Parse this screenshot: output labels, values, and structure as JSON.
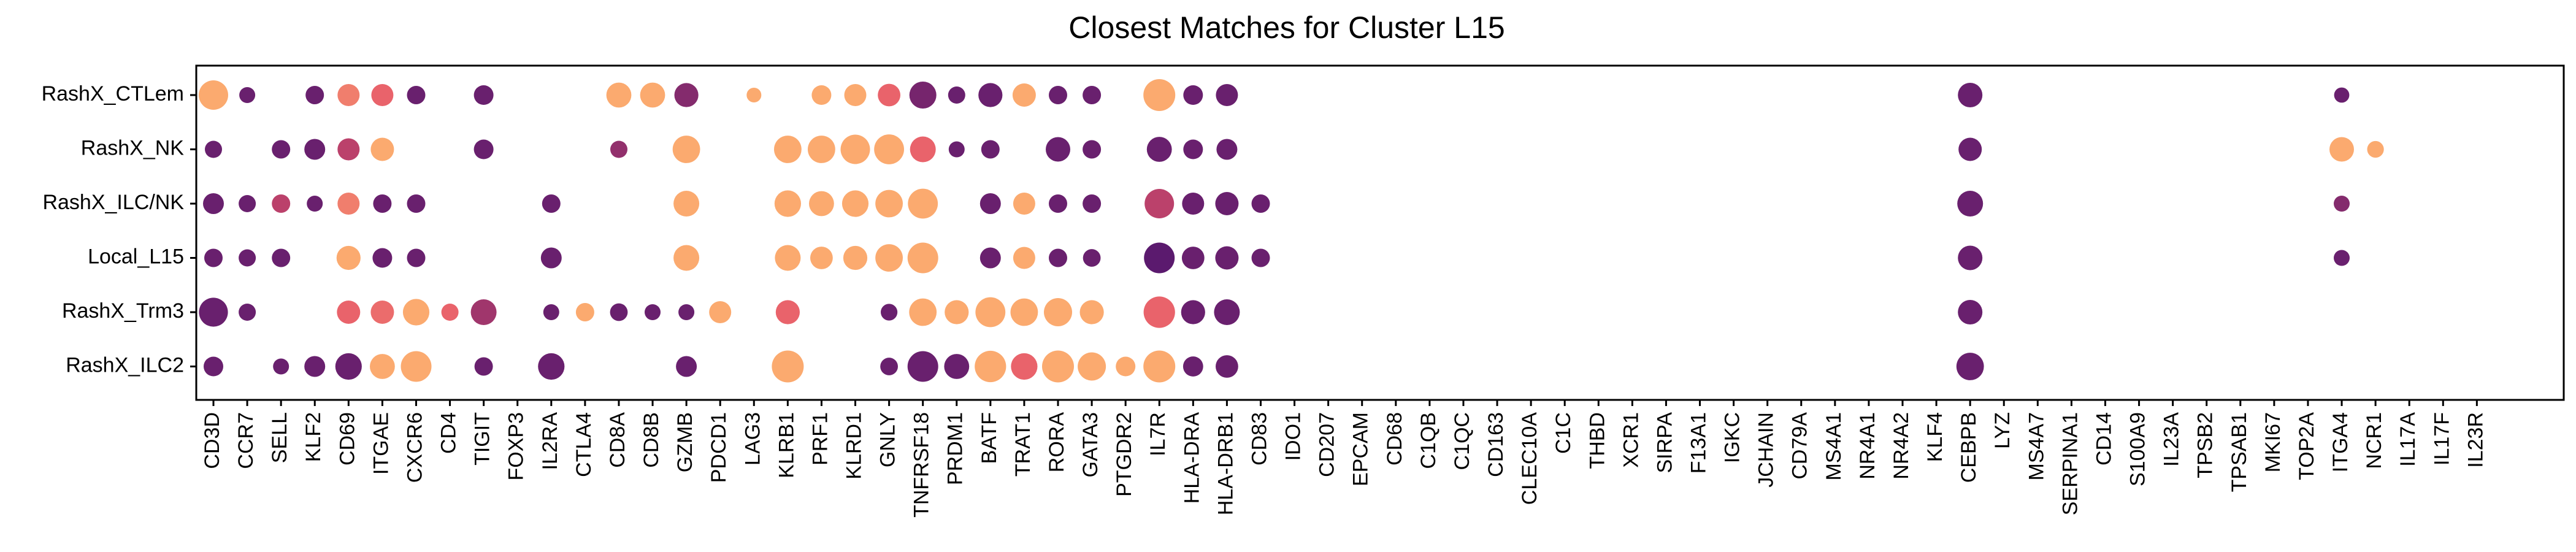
{
  "chart_data": {
    "type": "scatter",
    "title": "Closest Matches for Cluster L15",
    "xlabel": "",
    "ylabel": "",
    "grid": false,
    "legend": "none",
    "y_categories": [
      "RashX_CTLem",
      "RashX_NK",
      "RashX_ILC/NK",
      "Local_L15",
      "RashX_Trm3",
      "RashX_ILC2"
    ],
    "x_categories": [
      "CD3D",
      "CCR7",
      "SELL",
      "KLF2",
      "CD69",
      "ITGAE",
      "CXCR6",
      "CD4",
      "TIGIT",
      "FOXP3",
      "IL2RA",
      "CTLA4",
      "CD8A",
      "CD8B",
      "GZMB",
      "PDCD1",
      "LAG3",
      "KLRB1",
      "PRF1",
      "KLRD1",
      "GNLY",
      "TNFRSF18",
      "PRDM1",
      "BATF",
      "TRAT1",
      "RORA",
      "GATA3",
      "PTGDR2",
      "IL7R",
      "HLA-DRA",
      "HLA-DRB1",
      "CD83",
      "IDO1",
      "CD207",
      "EPCAM",
      "CD68",
      "C1QB",
      "C1QC",
      "CD163",
      "CLEC10A",
      "C1C",
      "THBD",
      "XCR1",
      "SIRPA",
      "F13A1",
      "IGKC",
      "JCHAIN",
      "CD79A",
      "MS4A1",
      "NR4A1",
      "NR4A2",
      "KLF4",
      "CEBPB",
      "LYZ",
      "MS4A7",
      "SERPINA1",
      "CD14",
      "S100A9",
      "IL23A",
      "TPSB2",
      "TPSAB1",
      "MKI67",
      "TOP2A",
      "ITGA4",
      "NCR1",
      "IL17A",
      "IL17F",
      "IL23R"
    ],
    "size_meaning": "relative dot size 0-1",
    "color_meaning": "expression level 0 (dark purple) to 1 (light orange)",
    "colors": {
      "low": "#5b1a6e",
      "mid": "#e4516a",
      "high": "#fbaa6f"
    },
    "series": [
      {
        "row": "RashX_CTLem",
        "points": [
          {
            "gene": "CD3D",
            "size": 0.9,
            "color": 1.0
          },
          {
            "gene": "CCR7",
            "size": 0.35,
            "color": 0.05
          },
          {
            "gene": "KLF2",
            "size": 0.45,
            "color": 0.05
          },
          {
            "gene": "CD69",
            "size": 0.6,
            "color": 0.75
          },
          {
            "gene": "ITGAE",
            "size": 0.6,
            "color": 0.6
          },
          {
            "gene": "CXCR6",
            "size": 0.45,
            "color": 0.05
          },
          {
            "gene": "TIGIT",
            "size": 0.5,
            "color": 0.05
          },
          {
            "gene": "CD8A",
            "size": 0.72,
            "color": 1.0
          },
          {
            "gene": "CD8B",
            "size": 0.72,
            "color": 1.0
          },
          {
            "gene": "GZMB",
            "size": 0.68,
            "color": 0.15
          },
          {
            "gene": "LAG3",
            "size": 0.3,
            "color": 1.0
          },
          {
            "gene": "PRF1",
            "size": 0.5,
            "color": 1.0
          },
          {
            "gene": "KLRD1",
            "size": 0.6,
            "color": 1.0
          },
          {
            "gene": "GNLY",
            "size": 0.62,
            "color": 0.6
          },
          {
            "gene": "TNFRSF18",
            "size": 0.8,
            "color": 0.1
          },
          {
            "gene": "PRDM1",
            "size": 0.4,
            "color": 0.05
          },
          {
            "gene": "BATF",
            "size": 0.68,
            "color": 0.05
          },
          {
            "gene": "TRAT1",
            "size": 0.65,
            "color": 1.0
          },
          {
            "gene": "RORA",
            "size": 0.45,
            "color": 0.05
          },
          {
            "gene": "GATA3",
            "size": 0.45,
            "color": 0.05
          },
          {
            "gene": "IL7R",
            "size": 1.0,
            "color": 1.0
          },
          {
            "gene": "HLA-DRA",
            "size": 0.5,
            "color": 0.05
          },
          {
            "gene": "HLA-DRB1",
            "size": 0.6,
            "color": 0.05
          },
          {
            "gene": "CEBPB",
            "size": 0.7,
            "color": 0.05
          },
          {
            "gene": "ITGA4",
            "size": 0.32,
            "color": 0.05
          }
        ]
      },
      {
        "row": "RashX_NK",
        "points": [
          {
            "gene": "CD3D",
            "size": 0.4,
            "color": 0.05
          },
          {
            "gene": "SELL",
            "size": 0.45,
            "color": 0.05
          },
          {
            "gene": "KLF2",
            "size": 0.55,
            "color": 0.05
          },
          {
            "gene": "CD69",
            "size": 0.6,
            "color": 0.35
          },
          {
            "gene": "ITGAE",
            "size": 0.65,
            "color": 1.0
          },
          {
            "gene": "TIGIT",
            "size": 0.5,
            "color": 0.05
          },
          {
            "gene": "CD8A",
            "size": 0.4,
            "color": 0.2
          },
          {
            "gene": "GZMB",
            "size": 0.82,
            "color": 1.0
          },
          {
            "gene": "KLRB1",
            "size": 0.82,
            "color": 1.0
          },
          {
            "gene": "PRF1",
            "size": 0.82,
            "color": 1.0
          },
          {
            "gene": "KLRD1",
            "size": 0.9,
            "color": 1.0
          },
          {
            "gene": "GNLY",
            "size": 0.92,
            "color": 1.0
          },
          {
            "gene": "TNFRSF18",
            "size": 0.75,
            "color": 0.6
          },
          {
            "gene": "PRDM1",
            "size": 0.35,
            "color": 0.05
          },
          {
            "gene": "BATF",
            "size": 0.45,
            "color": 0.05
          },
          {
            "gene": "RORA",
            "size": 0.7,
            "color": 0.05
          },
          {
            "gene": "GATA3",
            "size": 0.45,
            "color": 0.05
          },
          {
            "gene": "IL7R",
            "size": 0.72,
            "color": 0.05
          },
          {
            "gene": "HLA-DRA",
            "size": 0.5,
            "color": 0.05
          },
          {
            "gene": "HLA-DRB1",
            "size": 0.55,
            "color": 0.05
          },
          {
            "gene": "CEBPB",
            "size": 0.65,
            "color": 0.05
          },
          {
            "gene": "ITGA4",
            "size": 0.7,
            "color": 1.0
          },
          {
            "gene": "NCR1",
            "size": 0.38,
            "color": 1.0
          }
        ]
      },
      {
        "row": "RashX_ILC/NK",
        "points": [
          {
            "gene": "CD3D",
            "size": 0.55,
            "color": 0.05
          },
          {
            "gene": "CCR7",
            "size": 0.4,
            "color": 0.05
          },
          {
            "gene": "SELL",
            "size": 0.45,
            "color": 0.35
          },
          {
            "gene": "KLF2",
            "size": 0.35,
            "color": 0.05
          },
          {
            "gene": "CD69",
            "size": 0.6,
            "color": 0.75
          },
          {
            "gene": "ITGAE",
            "size": 0.45,
            "color": 0.05
          },
          {
            "gene": "CXCR6",
            "size": 0.45,
            "color": 0.05
          },
          {
            "gene": "IL2RA",
            "size": 0.45,
            "color": 0.05
          },
          {
            "gene": "GZMB",
            "size": 0.75,
            "color": 1.0
          },
          {
            "gene": "KLRB1",
            "size": 0.78,
            "color": 1.0
          },
          {
            "gene": "PRF1",
            "size": 0.72,
            "color": 1.0
          },
          {
            "gene": "KLRD1",
            "size": 0.78,
            "color": 1.0
          },
          {
            "gene": "GNLY",
            "size": 0.82,
            "color": 1.0
          },
          {
            "gene": "TNFRSF18",
            "size": 0.92,
            "color": 1.0
          },
          {
            "gene": "BATF",
            "size": 0.55,
            "color": 0.05
          },
          {
            "gene": "TRAT1",
            "size": 0.6,
            "color": 1.0
          },
          {
            "gene": "RORA",
            "size": 0.45,
            "color": 0.05
          },
          {
            "gene": "GATA3",
            "size": 0.45,
            "color": 0.05
          },
          {
            "gene": "IL7R",
            "size": 0.9,
            "color": 0.35
          },
          {
            "gene": "HLA-DRA",
            "size": 0.6,
            "color": 0.05
          },
          {
            "gene": "HLA-DRB1",
            "size": 0.65,
            "color": 0.05
          },
          {
            "gene": "CD83",
            "size": 0.45,
            "color": 0.05
          },
          {
            "gene": "CEBPB",
            "size": 0.75,
            "color": 0.05
          },
          {
            "gene": "ITGA4",
            "size": 0.35,
            "color": 0.15
          }
        ]
      },
      {
        "row": "Local_L15",
        "points": [
          {
            "gene": "CD3D",
            "size": 0.45,
            "color": 0.05
          },
          {
            "gene": "CCR7",
            "size": 0.4,
            "color": 0.05
          },
          {
            "gene": "SELL",
            "size": 0.45,
            "color": 0.05
          },
          {
            "gene": "CD69",
            "size": 0.68,
            "color": 1.0
          },
          {
            "gene": "ITGAE",
            "size": 0.5,
            "color": 0.05
          },
          {
            "gene": "CXCR6",
            "size": 0.45,
            "color": 0.05
          },
          {
            "gene": "IL2RA",
            "size": 0.55,
            "color": 0.05
          },
          {
            "gene": "GZMB",
            "size": 0.75,
            "color": 1.0
          },
          {
            "gene": "KLRB1",
            "size": 0.75,
            "color": 1.0
          },
          {
            "gene": "PRF1",
            "size": 0.62,
            "color": 1.0
          },
          {
            "gene": "KLRD1",
            "size": 0.68,
            "color": 1.0
          },
          {
            "gene": "GNLY",
            "size": 0.82,
            "color": 1.0
          },
          {
            "gene": "TNFRSF18",
            "size": 0.95,
            "color": 1.0
          },
          {
            "gene": "BATF",
            "size": 0.55,
            "color": 0.05
          },
          {
            "gene": "TRAT1",
            "size": 0.6,
            "color": 1.0
          },
          {
            "gene": "RORA",
            "size": 0.45,
            "color": 0.05
          },
          {
            "gene": "GATA3",
            "size": 0.42,
            "color": 0.05
          },
          {
            "gene": "IL7R",
            "size": 0.95,
            "color": 0.0
          },
          {
            "gene": "HLA-DRA",
            "size": 0.62,
            "color": 0.05
          },
          {
            "gene": "HLA-DRB1",
            "size": 0.65,
            "color": 0.05
          },
          {
            "gene": "CD83",
            "size": 0.45,
            "color": 0.05
          },
          {
            "gene": "CEBPB",
            "size": 0.7,
            "color": 0.05
          },
          {
            "gene": "ITGA4",
            "size": 0.35,
            "color": 0.05
          }
        ]
      },
      {
        "row": "RashX_Trm3",
        "points": [
          {
            "gene": "CD3D",
            "size": 0.88,
            "color": 0.05
          },
          {
            "gene": "CCR7",
            "size": 0.4,
            "color": 0.05
          },
          {
            "gene": "CD69",
            "size": 0.65,
            "color": 0.6
          },
          {
            "gene": "ITGAE",
            "size": 0.65,
            "color": 0.65
          },
          {
            "gene": "CXCR6",
            "size": 0.78,
            "color": 1.0
          },
          {
            "gene": "CD4",
            "size": 0.4,
            "color": 0.6
          },
          {
            "gene": "TIGIT",
            "size": 0.75,
            "color": 0.25
          },
          {
            "gene": "IL2RA",
            "size": 0.35,
            "color": 0.05
          },
          {
            "gene": "CTLA4",
            "size": 0.45,
            "color": 1.0
          },
          {
            "gene": "CD8A",
            "size": 0.42,
            "color": 0.05
          },
          {
            "gene": "CD8B",
            "size": 0.35,
            "color": 0.05
          },
          {
            "gene": "GZMB",
            "size": 0.35,
            "color": 0.05
          },
          {
            "gene": "PDCD1",
            "size": 0.6,
            "color": 1.0
          },
          {
            "gene": "KLRB1",
            "size": 0.68,
            "color": 0.6
          },
          {
            "gene": "GNLY",
            "size": 0.38,
            "color": 0.05
          },
          {
            "gene": "TNFRSF18",
            "size": 0.82,
            "color": 1.0
          },
          {
            "gene": "PRDM1",
            "size": 0.68,
            "color": 1.0
          },
          {
            "gene": "BATF",
            "size": 0.92,
            "color": 1.0
          },
          {
            "gene": "TRAT1",
            "size": 0.82,
            "color": 1.0
          },
          {
            "gene": "RORA",
            "size": 0.85,
            "color": 1.0
          },
          {
            "gene": "GATA3",
            "size": 0.68,
            "color": 1.0
          },
          {
            "gene": "IL7R",
            "size": 0.98,
            "color": 0.6
          },
          {
            "gene": "HLA-DRA",
            "size": 0.68,
            "color": 0.05
          },
          {
            "gene": "HLA-DRB1",
            "size": 0.75,
            "color": 0.05
          },
          {
            "gene": "CEBPB",
            "size": 0.7,
            "color": 0.05
          }
        ]
      },
      {
        "row": "RashX_ILC2",
        "points": [
          {
            "gene": "CD3D",
            "size": 0.5,
            "color": 0.05
          },
          {
            "gene": "SELL",
            "size": 0.35,
            "color": 0.05
          },
          {
            "gene": "KLF2",
            "size": 0.55,
            "color": 0.05
          },
          {
            "gene": "CD69",
            "size": 0.78,
            "color": 0.05
          },
          {
            "gene": "ITGAE",
            "size": 0.72,
            "color": 1.0
          },
          {
            "gene": "CXCR6",
            "size": 0.95,
            "color": 1.0
          },
          {
            "gene": "TIGIT",
            "size": 0.45,
            "color": 0.05
          },
          {
            "gene": "IL2RA",
            "size": 0.78,
            "color": 0.05
          },
          {
            "gene": "GZMB",
            "size": 0.55,
            "color": 0.05
          },
          {
            "gene": "KLRB1",
            "size": 1.0,
            "color": 1.0
          },
          {
            "gene": "GNLY",
            "size": 0.42,
            "color": 0.05
          },
          {
            "gene": "TNFRSF18",
            "size": 0.95,
            "color": 0.05
          },
          {
            "gene": "PRDM1",
            "size": 0.72,
            "color": 0.05
          },
          {
            "gene": "BATF",
            "size": 0.98,
            "color": 1.0
          },
          {
            "gene": "TRAT1",
            "size": 0.78,
            "color": 0.6
          },
          {
            "gene": "RORA",
            "size": 1.0,
            "color": 1.0
          },
          {
            "gene": "GATA3",
            "size": 0.85,
            "color": 1.0
          },
          {
            "gene": "PTGDR2",
            "size": 0.5,
            "color": 1.0
          },
          {
            "gene": "IL7R",
            "size": 1.0,
            "color": 1.0
          },
          {
            "gene": "HLA-DRA",
            "size": 0.52,
            "color": 0.05
          },
          {
            "gene": "HLA-DRB1",
            "size": 0.62,
            "color": 0.05
          },
          {
            "gene": "CEBPB",
            "size": 0.82,
            "color": 0.05
          }
        ]
      }
    ]
  }
}
